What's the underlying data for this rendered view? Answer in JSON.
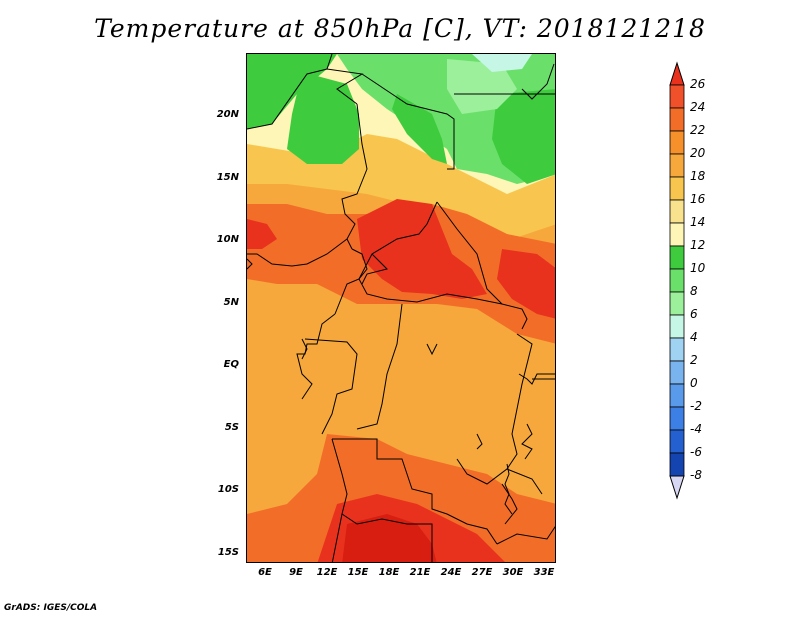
{
  "title": "Temperature at 850hPa [C], VT: 2018121218",
  "credit": "GrADS: IGES/COLA",
  "lat_ticks": [
    "20N",
    "15N",
    "10N",
    "5N",
    "EQ",
    "5S",
    "10S",
    "15S"
  ],
  "lon_ticks": [
    "6E",
    "9E",
    "12E",
    "15E",
    "18E",
    "21E",
    "24E",
    "27E",
    "30E",
    "33E"
  ],
  "colorbar": {
    "labels": [
      "26",
      "24",
      "22",
      "20",
      "18",
      "16",
      "14",
      "12",
      "10",
      "8",
      "6",
      "4",
      "2",
      "0",
      "-2",
      "-4",
      "-6",
      "-8"
    ],
    "colors": [
      "#e8321e",
      "#f0502a",
      "#f26e28",
      "#f5902a",
      "#f6a83c",
      "#f8c64e",
      "#f8e28e",
      "#fdf6b6",
      "#3ecc3e",
      "#6ae06a",
      "#9cf09c",
      "#c6f6e6",
      "#a0d2f2",
      "#7ab4ee",
      "#5a9aea",
      "#3c80e6",
      "#2460d0",
      "#1444b0",
      "#0a2880"
    ]
  },
  "map_colors": {
    "base": "#f6a83c",
    "warm": "#f26e28",
    "hot": "#e8321e",
    "hottest": "#d81e10",
    "mild": "#f8c64e",
    "cool": "#fdf6b6",
    "green_dark": "#3ecc3e",
    "green_mid": "#6ae06a",
    "green_light": "#9cf09c",
    "lightest": "#c6f6e6"
  }
}
